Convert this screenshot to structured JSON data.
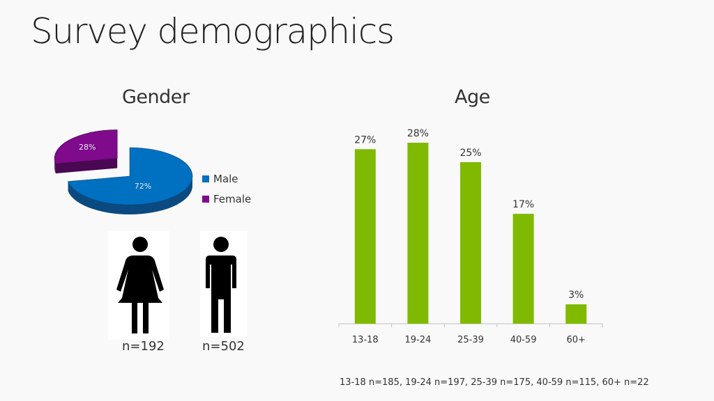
{
  "title": "Survey demographics",
  "gender": {
    "title": "Gender",
    "legend": [
      {
        "label": "Male",
        "color": "#0070c0"
      },
      {
        "label": "Female",
        "color": "#7f0a8c"
      }
    ],
    "female_count": "n=192",
    "male_count": "n=502"
  },
  "age": {
    "title": "Age",
    "footnote": "13-18 n=185, 19-24 n=197, 25-39 n=175, 40-59 n=115, 60+ n=22"
  },
  "chart_data": [
    {
      "type": "pie",
      "title": "Gender",
      "categories": [
        "Male",
        "Female"
      ],
      "values": [
        72,
        28
      ],
      "labels": [
        "72%",
        "28%"
      ],
      "colors": [
        "#0070c0",
        "#7f0a8c"
      ],
      "legend": "right"
    },
    {
      "type": "bar",
      "title": "Age",
      "categories": [
        "13-18",
        "19-24",
        "25-39",
        "40-59",
        "60+"
      ],
      "values": [
        27,
        28,
        25,
        17,
        3
      ],
      "labels": [
        "27%",
        "28%",
        "25%",
        "17%",
        "3%"
      ],
      "color": "#7fba00",
      "ylim": [
        0,
        28
      ],
      "grid": false
    }
  ]
}
